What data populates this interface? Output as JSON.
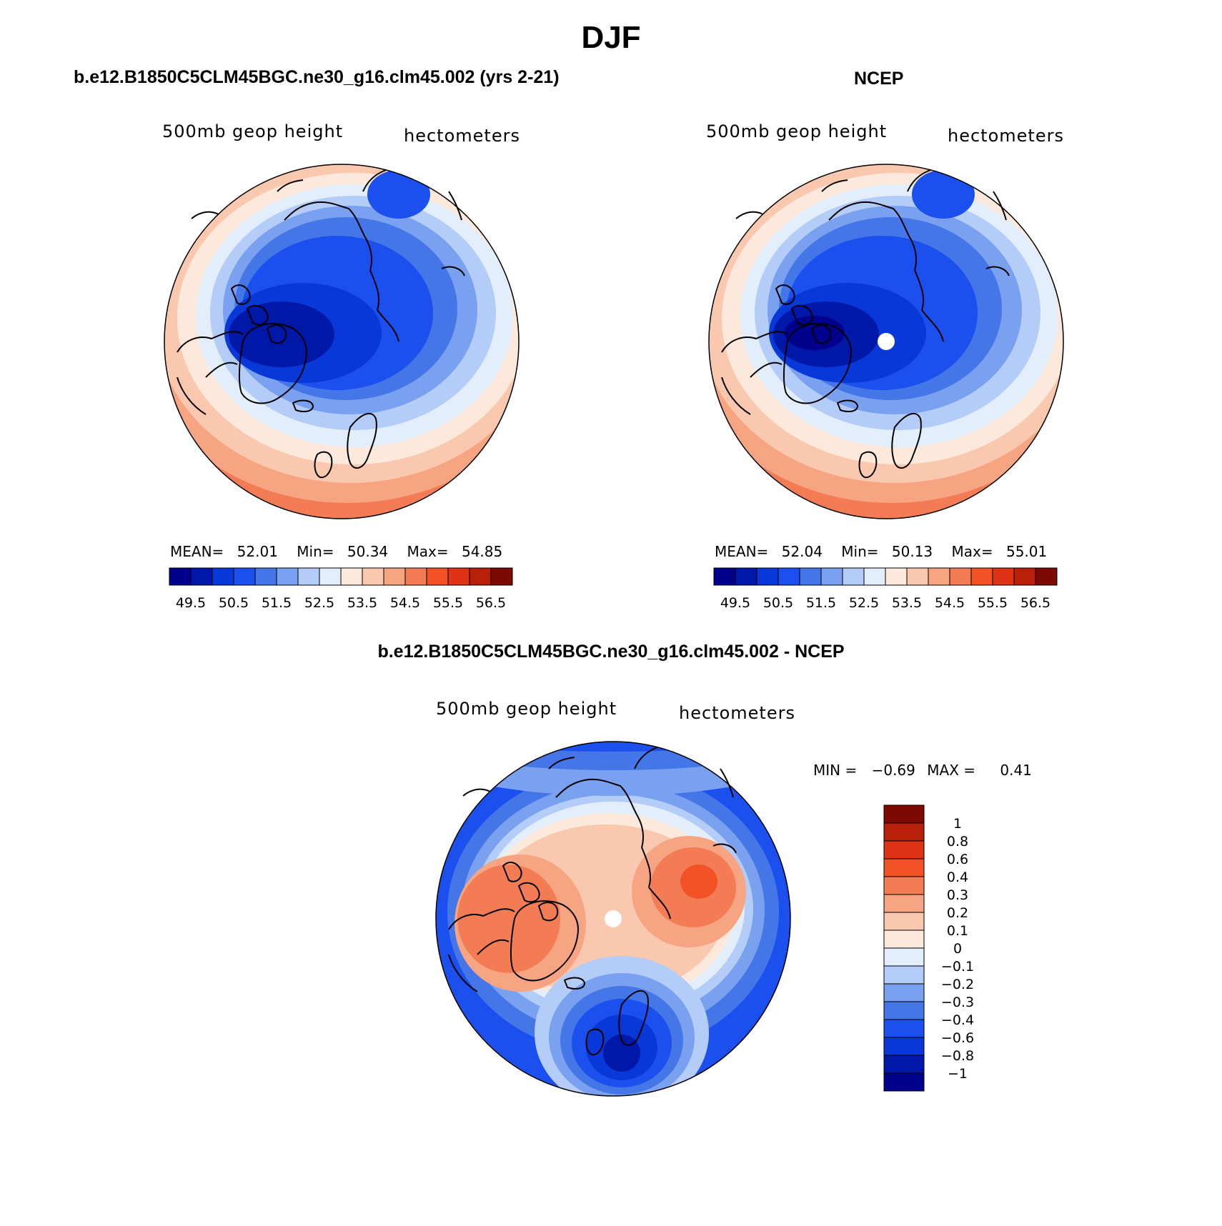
{
  "figure": {
    "title": "DJF",
    "diff_title": "b.e12.B1850C5CLM45BGC.ne30_g16.clm45.002 - NCEP"
  },
  "colors": {
    "main_levels": [
      "#00008c",
      "#0018a8",
      "#0838d8",
      "#1c50ee",
      "#4476e8",
      "#7aa0f0",
      "#b4ccf8",
      "#e2eefc",
      "#fde8dc",
      "#fac8ae",
      "#f6a482",
      "#f47c54",
      "#f25226",
      "#e03214",
      "#b8200a",
      "#7c0a02"
    ],
    "diff_levels": [
      "#00008c",
      "#0018a8",
      "#0838d8",
      "#1c50ee",
      "#4476e8",
      "#7aa0f0",
      "#b4ccf8",
      "#e2eefc",
      "#fde8dc",
      "#fac8ae",
      "#f6a482",
      "#f47c54",
      "#f25226",
      "#e03214",
      "#b8200a",
      "#7c0a02"
    ]
  },
  "chart_data": [
    {
      "type": "heatmap",
      "projection": "polar-stereographic",
      "title": "b.e12.B1850C5CLM45BGC.ne30_g16.clm45.002 (yrs 2-21)",
      "field_label": "500mb geop height",
      "units_label": "hectometers",
      "stats": {
        "mean_label": "MEAN=",
        "mean": "52.01",
        "min_label": "Min=",
        "min": "50.34",
        "max_label": "Max=",
        "max": "54.85"
      },
      "colorbar": {
        "orientation": "horizontal",
        "levels": [
          49.5,
          50.5,
          51.5,
          52.5,
          53.5,
          54.5,
          55.5,
          56.5
        ],
        "tick_labels": [
          "49.5",
          "50.5",
          "51.5",
          "52.5",
          "53.5",
          "54.5",
          "55.5",
          "56.5"
        ]
      }
    },
    {
      "type": "heatmap",
      "projection": "polar-stereographic",
      "title": "NCEP",
      "field_label": "500mb geop height",
      "units_label": "hectometers",
      "stats": {
        "mean_label": "MEAN=",
        "mean": "52.04",
        "min_label": "Min=",
        "min": "50.13",
        "max_label": "Max=",
        "max": "55.01"
      },
      "colorbar": {
        "orientation": "horizontal",
        "levels": [
          49.5,
          50.5,
          51.5,
          52.5,
          53.5,
          54.5,
          55.5,
          56.5
        ],
        "tick_labels": [
          "49.5",
          "50.5",
          "51.5",
          "52.5",
          "53.5",
          "54.5",
          "55.5",
          "56.5"
        ]
      }
    },
    {
      "type": "heatmap",
      "projection": "polar-stereographic",
      "title": "b.e12.B1850C5CLM45BGC.ne30_g16.clm45.002 - NCEP",
      "field_label": "500mb geop height",
      "units_label": "hectometers",
      "stats": {
        "min_label": "MIN =",
        "min": "−0.69",
        "max_label": "MAX =",
        "max": "0.41"
      },
      "colorbar": {
        "orientation": "vertical",
        "levels": [
          1,
          0.8,
          0.6,
          0.4,
          0.3,
          0.2,
          0.1,
          0,
          -0.1,
          -0.2,
          -0.3,
          -0.4,
          -0.6,
          -0.8,
          -1
        ],
        "tick_labels": [
          "1",
          "0.8",
          "0.6",
          "0.4",
          "0.3",
          "0.2",
          "0.1",
          "0",
          "−0.1",
          "−0.2",
          "−0.3",
          "−0.4",
          "−0.6",
          "−0.8",
          "−1"
        ]
      }
    }
  ]
}
